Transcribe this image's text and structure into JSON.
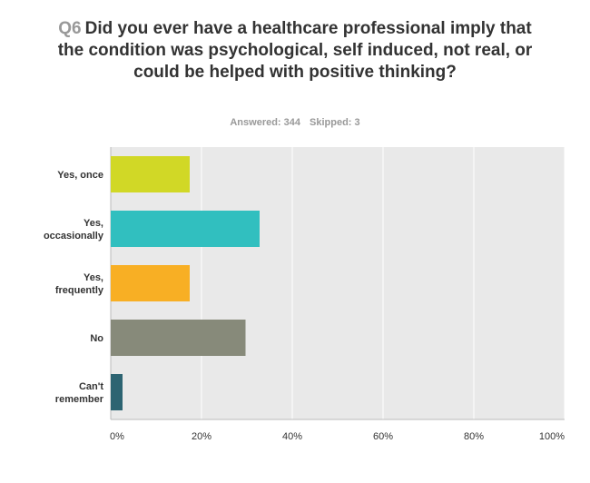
{
  "question": {
    "number": "Q6",
    "text": "Did you ever have a healthcare professional imply that the condition was psychological, self induced, not real, or could be helped with positive thinking?"
  },
  "stats": {
    "answered": "Answered: 344",
    "skipped": "Skipped: 3"
  },
  "colors": {
    "plot_background": "#e9e9e9",
    "gridline": "#ffffff",
    "axis": "#bbbbbb"
  },
  "chart_data": {
    "type": "bar",
    "orientation": "horizontal",
    "categories": [
      [
        "Yes, once"
      ],
      [
        "Yes,",
        "occasionally"
      ],
      [
        "Yes,",
        "frequently"
      ],
      [
        "No"
      ],
      [
        "Can't",
        "remember"
      ]
    ],
    "values": [
      17.4,
      32.8,
      17.4,
      29.7,
      2.6
    ],
    "colors": [
      "#d1d826",
      "#31bfbf",
      "#f8af24",
      "#878a7a",
      "#2d6472"
    ],
    "xlim": [
      0,
      100
    ],
    "ticks": [
      0,
      20,
      40,
      60,
      80,
      100
    ],
    "tick_labels": [
      "0%",
      "20%",
      "40%",
      "60%",
      "80%",
      "100%"
    ],
    "grid": true,
    "legend": "none"
  }
}
